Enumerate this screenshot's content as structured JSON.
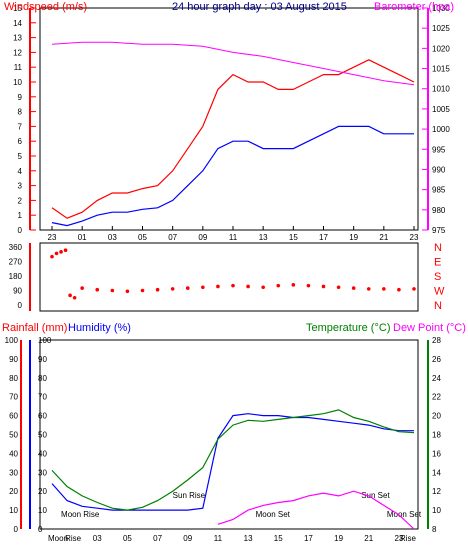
{
  "chart_data": [
    {
      "type": "line",
      "title": "24 hour graph day : 03 August 2015",
      "ylabel_left": "Windspeed (m/s)",
      "ylabel_right": "Barometer (hpa)",
      "x_ticks": [
        "23",
        "01",
        "03",
        "05",
        "07",
        "09",
        "11",
        "13",
        "15",
        "17",
        "19",
        "21",
        "23"
      ],
      "left_ylim": [
        0,
        15
      ],
      "left_ticks": [
        "0",
        "1",
        "2",
        "3",
        "4",
        "5",
        "6",
        "7",
        "8",
        "9",
        "10",
        "11",
        "12",
        "13",
        "14",
        "15"
      ],
      "right_ylim": [
        975,
        1030
      ],
      "right_ticks": [
        "975",
        "980",
        "985",
        "990",
        "995",
        "1000",
        "1005",
        "1010",
        "1015",
        "1020",
        "1025",
        "1030"
      ],
      "grid": false,
      "series": [
        {
          "color": "#ff0000",
          "hours": [
            0,
            1,
            2,
            3,
            4,
            5,
            6,
            7,
            8,
            9,
            10,
            11,
            12,
            13,
            14,
            15,
            16,
            17,
            18,
            19,
            20,
            21,
            22,
            23,
            24
          ],
          "values": [
            1.5,
            0.8,
            1.2,
            2.0,
            2.5,
            2.5,
            2.8,
            3.0,
            4.0,
            5.5,
            7.0,
            9.5,
            10.5,
            10.0,
            10.0,
            9.5,
            9.5,
            10.0,
            10.5,
            10.5,
            11.0,
            11.5,
            11.0,
            10.5,
            10.0
          ]
        },
        {
          "color": "#0000ff",
          "hours": [
            0,
            1,
            2,
            3,
            4,
            5,
            6,
            7,
            8,
            9,
            10,
            11,
            12,
            13,
            14,
            15,
            16,
            17,
            18,
            19,
            20,
            21,
            22,
            23,
            24
          ],
          "values": [
            0.5,
            0.3,
            0.6,
            1.0,
            1.2,
            1.2,
            1.4,
            1.5,
            2.0,
            3.0,
            4.0,
            5.5,
            6.0,
            6.0,
            5.5,
            5.5,
            5.5,
            6.0,
            6.5,
            7.0,
            7.0,
            7.0,
            6.5,
            6.5,
            6.5
          ]
        },
        {
          "color": "#ff00ff",
          "hours": [
            0,
            2,
            4,
            6,
            8,
            10,
            12,
            14,
            16,
            18,
            20,
            22,
            24
          ],
          "values": [
            1021.0,
            1021.5,
            1021.5,
            1021.0,
            1021.0,
            1020.5,
            1019.0,
            1018.0,
            1016.5,
            1015.0,
            1013.5,
            1012.0,
            1011.0
          ]
        }
      ]
    },
    {
      "type": "scatter",
      "title": "",
      "ylabel_left_ticks": [
        "0",
        "90",
        "180",
        "270",
        "360"
      ],
      "ylabel_right_ticks": [
        "N",
        "W",
        "S",
        "E",
        "N"
      ],
      "ylim": [
        0,
        360
      ],
      "series": [
        {
          "color": "#ff0000",
          "hours": [
            0,
            0.3,
            0.6,
            0.9,
            1.2,
            1.5,
            2,
            3,
            4,
            5,
            6,
            7,
            8,
            9,
            10,
            11,
            12,
            13,
            14,
            15,
            16,
            17,
            18,
            19,
            20,
            21,
            22,
            23,
            24
          ],
          "values": [
            300,
            320,
            330,
            340,
            60,
            45,
            105,
            95,
            90,
            85,
            90,
            95,
            100,
            105,
            110,
            115,
            120,
            115,
            110,
            120,
            125,
            120,
            115,
            110,
            105,
            100,
            100,
            95,
            100
          ]
        }
      ]
    },
    {
      "type": "line",
      "title": "",
      "ylabel_left": "Rainfall (mm)",
      "ylabel_left2": "Humidity (%)",
      "ylabel_right": "Temperature (°C)",
      "ylabel_right2": "Dew Point (°C)",
      "left_ylim": [
        0,
        100
      ],
      "left_ticks": [
        "0",
        "10",
        "20",
        "30",
        "40",
        "50",
        "60",
        "70",
        "80",
        "90",
        "100"
      ],
      "right_ylim": [
        8,
        28
      ],
      "right_ticks": [
        "8",
        "10",
        "12",
        "14",
        "16",
        "18",
        "20",
        "22",
        "24",
        "26",
        "28"
      ],
      "x_ticks": [
        "Moon",
        "Rise",
        "03",
        "05",
        "07",
        "09",
        "11",
        "13",
        "15",
        "17",
        "19",
        "21",
        "23",
        "Rise"
      ],
      "annotations": [
        "Moon Rise",
        "Sun Rise",
        "Moon Set",
        "Sun Set",
        "Moon Set"
      ],
      "series": [
        {
          "color": "#0000ff",
          "hours": [
            0,
            1,
            2,
            3,
            4,
            5,
            6,
            7,
            8,
            9,
            10,
            11,
            12,
            13,
            14,
            15,
            16,
            17,
            18,
            19,
            20,
            21,
            22,
            23,
            24
          ],
          "values": [
            24,
            15,
            12,
            11,
            10,
            10,
            10,
            10,
            10,
            10,
            11,
            48,
            60,
            61,
            60,
            60,
            59,
            59,
            58,
            57,
            56,
            55,
            53,
            52,
            52
          ]
        },
        {
          "color": "#008000",
          "hours": [
            0,
            1,
            2,
            3,
            4,
            5,
            6,
            7,
            8,
            9,
            10,
            11,
            12,
            13,
            14,
            15,
            16,
            17,
            18,
            19,
            20,
            21,
            22,
            23,
            24
          ],
          "values": [
            14.2,
            12.5,
            11.5,
            10.8,
            10.2,
            10.0,
            10.3,
            11.0,
            12.0,
            13.2,
            14.5,
            17.5,
            19.0,
            19.5,
            19.4,
            19.6,
            19.8,
            20.0,
            20.2,
            20.6,
            19.8,
            19.4,
            18.8,
            18.3,
            18.2
          ]
        },
        {
          "color": "#ff00ff",
          "hours": [
            11,
            12,
            13,
            14,
            15,
            16,
            17,
            18,
            19,
            20,
            21,
            22,
            23,
            24
          ],
          "values": [
            8.5,
            9.0,
            10.0,
            10.5,
            10.8,
            11.0,
            11.5,
            11.8,
            11.5,
            12.0,
            11.5,
            10.5,
            9.5,
            8.0
          ]
        }
      ]
    }
  ],
  "labels": {
    "title": "24 hour graph day : 03 August 2015",
    "windspeed": "Windspeed (m/s)",
    "barometer": "Barometer (hpa)",
    "rainfall": "Rainfall (mm)",
    "humidity": "Humidity (%)",
    "temperature": "Temperature (°C)",
    "dewpoint": "Dew Point (°C)"
  },
  "colors": {
    "wind_gust": "#ff0000",
    "wind_avg": "#0000ff",
    "barometer": "#ff00ff",
    "humidity": "#0000ff",
    "temperature": "#008000",
    "dewpoint": "#ff00ff",
    "annotation": "#e0e000"
  }
}
